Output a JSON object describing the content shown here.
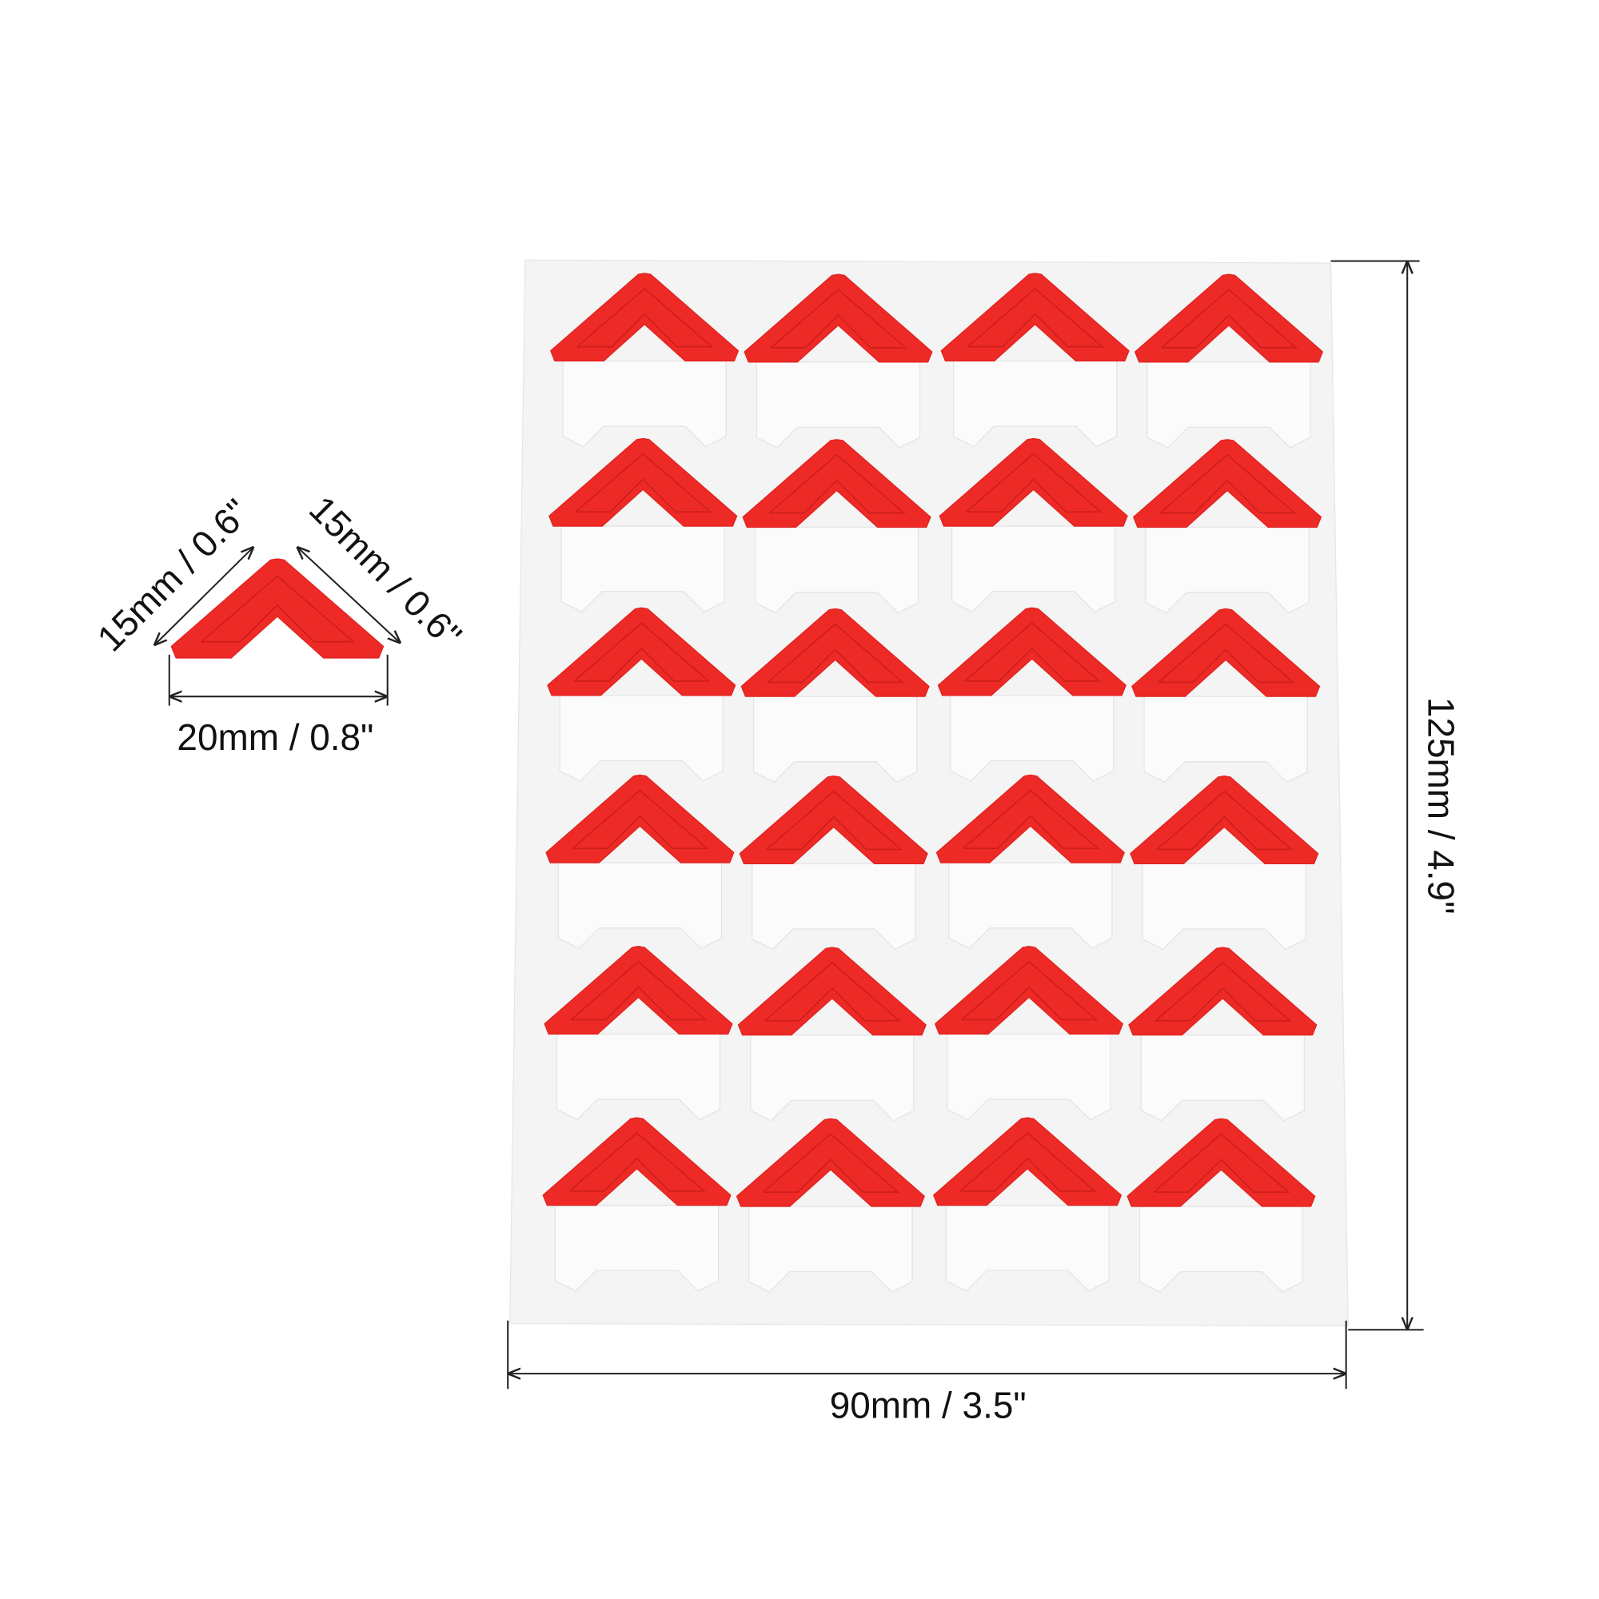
{
  "corner_dimensions": {
    "left_edge": "15mm / 0.6\"",
    "right_edge": "15mm / 0.6\"",
    "width": "20mm / 0.8\""
  },
  "sheet_dimensions": {
    "height": "125mm / 4.9\"",
    "width": "90mm / 3.5\""
  }
}
